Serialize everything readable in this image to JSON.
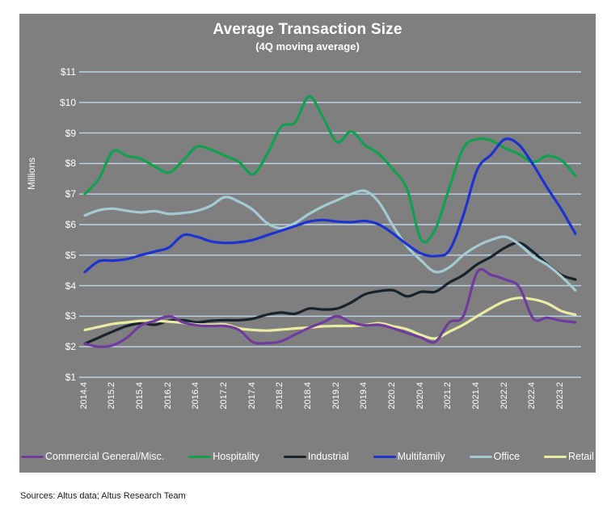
{
  "chart": {
    "title": "Average Transaction Size",
    "subtitle": "(4Q moving average)",
    "y_axis_title": "Millions",
    "source_note": "Sources: Altus data; Altus Research Team"
  },
  "chart_data": {
    "type": "line",
    "title": "Average Transaction Size",
    "subtitle": "(4Q moving average)",
    "ylabel": "Millions",
    "ylim": [
      1,
      11
    ],
    "y_ticks": [
      "$1",
      "$2",
      "$3",
      "$4",
      "$5",
      "$6",
      "$7",
      "$8",
      "$9",
      "$10",
      "$11"
    ],
    "grid": true,
    "background_color": "#7f7f7f",
    "gridline_color": "#bcd6ec",
    "legend_position": "bottom",
    "x": [
      "2014.4",
      "2015.1",
      "2015.2",
      "2015.3",
      "2015.4",
      "2016.1",
      "2016.2",
      "2016.3",
      "2016.4",
      "2017.1",
      "2017.2",
      "2017.3",
      "2017.4",
      "2018.1",
      "2018.2",
      "2018.3",
      "2018.4",
      "2019.1",
      "2019.2",
      "2019.3",
      "2019.4",
      "2020.1",
      "2020.2",
      "2020.3",
      "2020.4",
      "2021.1",
      "2021.2",
      "2021.3",
      "2021.4",
      "2022.1",
      "2022.2",
      "2022.3",
      "2022.4",
      "2023.1",
      "2023.2",
      "2023.3"
    ],
    "x_tick_labels": [
      "2014.4",
      "2015.2",
      "2015.4",
      "2016.2",
      "2016.4",
      "2017.2",
      "2017.4",
      "2018.2",
      "2018.4",
      "2019.2",
      "2019.4",
      "2020.2",
      "2020.4",
      "2021.2",
      "2021.4",
      "2022.2",
      "2022.4",
      "2023.2"
    ],
    "x_tick_every": 2,
    "series": [
      {
        "name": "Commercial General/Misc.",
        "color": "#6f3b9e",
        "z": 5,
        "values": [
          2.1,
          2.0,
          2.05,
          2.3,
          2.7,
          2.85,
          3.0,
          2.8,
          2.7,
          2.68,
          2.68,
          2.55,
          2.15,
          2.12,
          2.18,
          2.4,
          2.62,
          2.8,
          3.0,
          2.8,
          2.7,
          2.72,
          2.6,
          2.45,
          2.3,
          2.16,
          2.8,
          3.0,
          4.45,
          4.35,
          4.2,
          3.95,
          2.92,
          2.95,
          2.85,
          2.8
        ]
      },
      {
        "name": "Hospitality",
        "color": "#0fa14f",
        "z": 3,
        "values": [
          7.0,
          7.5,
          8.4,
          8.25,
          8.15,
          7.9,
          7.7,
          8.1,
          8.55,
          8.45,
          8.25,
          8.05,
          7.65,
          8.3,
          9.2,
          9.35,
          10.2,
          9.5,
          8.7,
          9.05,
          8.6,
          8.3,
          7.8,
          7.15,
          5.5,
          5.85,
          7.2,
          8.5,
          8.8,
          8.75,
          8.5,
          8.3,
          8.05,
          8.25,
          8.1,
          7.6
        ]
      },
      {
        "name": "Industrial",
        "color": "#17242e",
        "z": 1,
        "values": [
          2.1,
          2.3,
          2.5,
          2.68,
          2.77,
          2.72,
          2.85,
          2.87,
          2.8,
          2.85,
          2.87,
          2.87,
          2.92,
          3.05,
          3.12,
          3.08,
          3.25,
          3.22,
          3.25,
          3.45,
          3.72,
          3.82,
          3.85,
          3.65,
          3.8,
          3.8,
          4.1,
          4.35,
          4.7,
          4.95,
          5.25,
          5.4,
          5.1,
          4.7,
          4.35,
          4.2
        ]
      },
      {
        "name": "Multifamily",
        "color": "#1c33cf",
        "z": 6,
        "values": [
          4.45,
          4.8,
          4.82,
          4.87,
          5.0,
          5.12,
          5.25,
          5.65,
          5.6,
          5.45,
          5.4,
          5.42,
          5.5,
          5.65,
          5.8,
          5.95,
          6.1,
          6.15,
          6.1,
          6.08,
          6.12,
          6.0,
          5.7,
          5.35,
          5.05,
          4.97,
          5.15,
          6.3,
          7.8,
          8.3,
          8.8,
          8.6,
          7.95,
          7.2,
          6.5,
          5.7
        ]
      },
      {
        "name": "Office",
        "color": "#a4cad2",
        "z": 4,
        "values": [
          6.3,
          6.47,
          6.52,
          6.45,
          6.4,
          6.44,
          6.35,
          6.38,
          6.45,
          6.62,
          6.9,
          6.75,
          6.48,
          6.05,
          5.88,
          6.05,
          6.35,
          6.6,
          6.8,
          7.0,
          7.1,
          6.72,
          5.95,
          5.28,
          4.82,
          4.45,
          4.6,
          5.0,
          5.3,
          5.5,
          5.6,
          5.35,
          4.95,
          4.68,
          4.3,
          3.85
        ]
      },
      {
        "name": "Retail",
        "color": "#e9eca1",
        "z": 2,
        "values": [
          2.55,
          2.65,
          2.75,
          2.8,
          2.85,
          2.85,
          2.82,
          2.78,
          2.73,
          2.72,
          2.73,
          2.6,
          2.55,
          2.53,
          2.56,
          2.6,
          2.63,
          2.67,
          2.68,
          2.68,
          2.71,
          2.77,
          2.67,
          2.57,
          2.38,
          2.27,
          2.49,
          2.72,
          3.0,
          3.27,
          3.5,
          3.6,
          3.55,
          3.42,
          3.17,
          3.05
        ]
      }
    ]
  }
}
